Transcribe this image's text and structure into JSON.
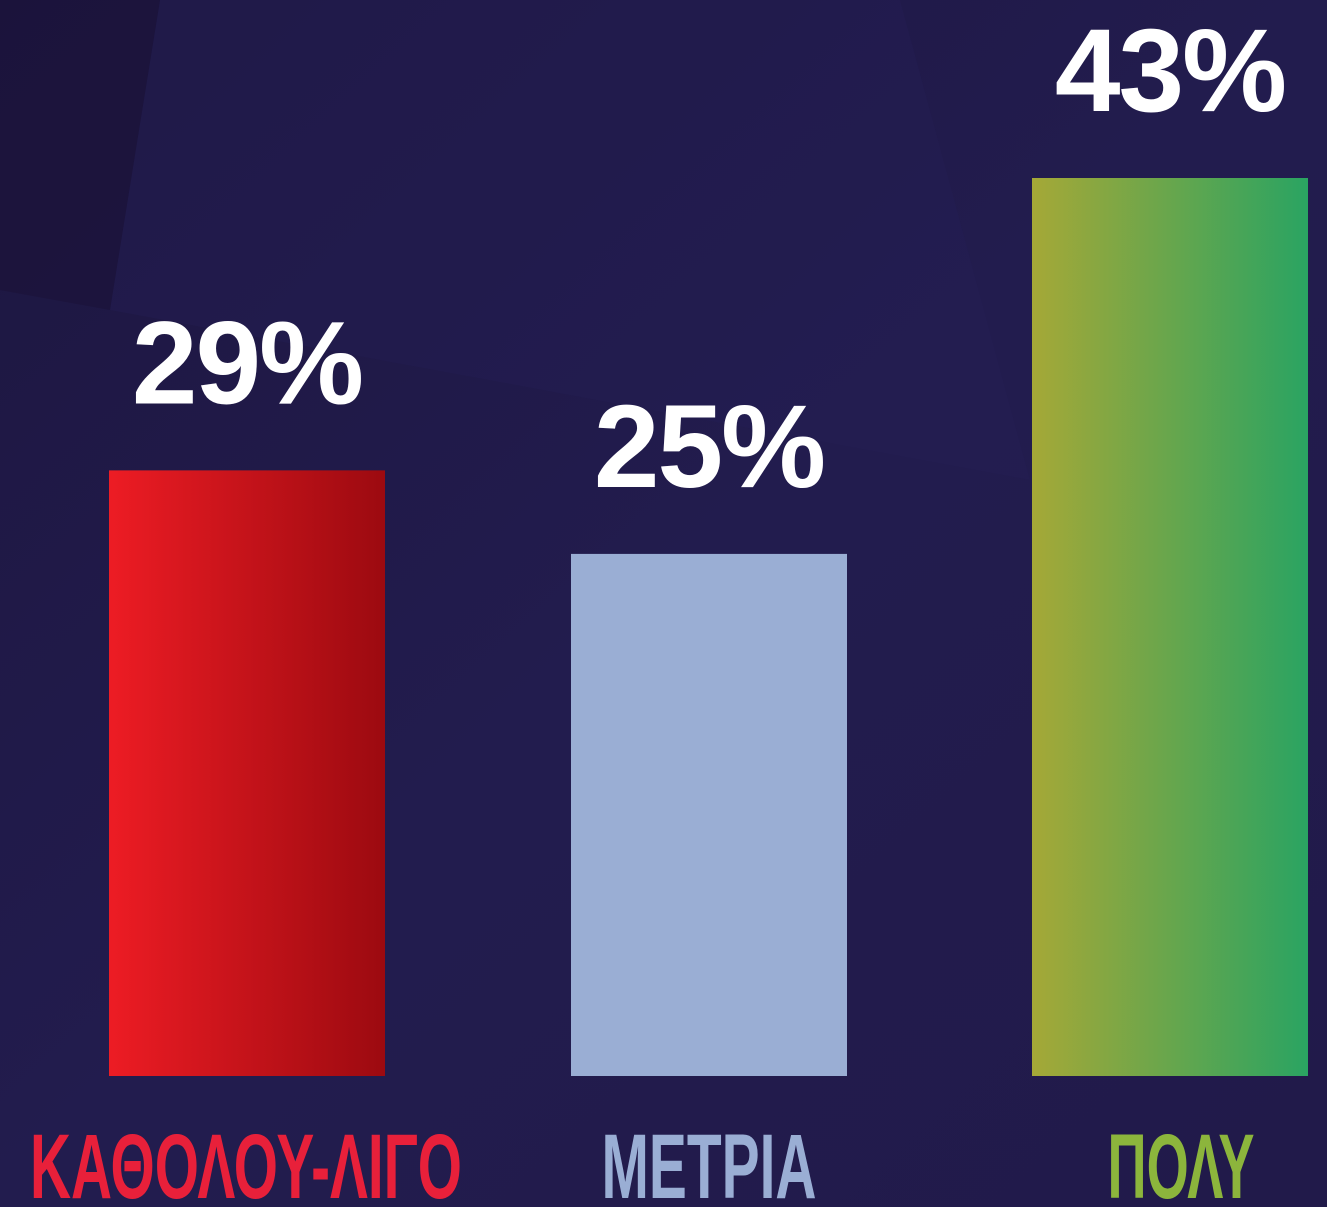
{
  "chart_data": {
    "type": "bar",
    "categories": [
      "ΚΑΘΟΛΟΥ-ΛΙΓΟ",
      "ΜΕΤΡΙΑ",
      "ΠΟΛΥ"
    ],
    "values": [
      29,
      25,
      43
    ],
    "value_labels": [
      "29%",
      "25%",
      "43%"
    ],
    "colors": [
      [
        "#ed1c24",
        "#9c0a10"
      ],
      [
        "#9aaed4",
        "#9aaed4"
      ],
      [
        "#a5a837",
        "#2aa462"
      ]
    ],
    "label_colors": [
      "#e8203a",
      "#9aaed4",
      "#8cb53c"
    ]
  }
}
